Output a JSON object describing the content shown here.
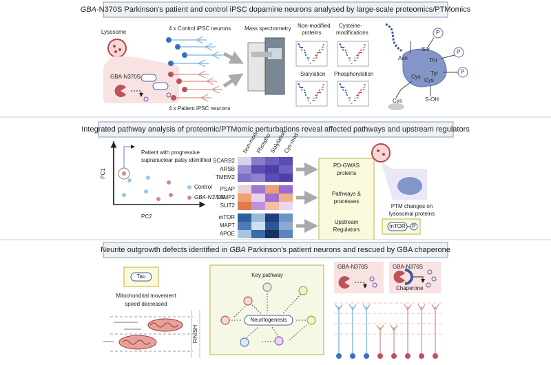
{
  "panel1": {
    "header": [
      "GBA",
      "-N370S Parkinson's patient and control iPSC dopamine neurons analysed by large-scale proteomics/PTMomics"
    ],
    "lysosome_label": "Lysosome",
    "mutant_label": "GBA-N370S",
    "control_label": "4 x Control iPSC neurons",
    "patient_label": "4 x Patient iPSC neurons",
    "instrument_label": "Mass spectrometry",
    "plots": [
      [
        "Non-modified",
        "proteins"
      ],
      [
        "Cysteine-",
        "modifications"
      ],
      [
        "Sialylation"
      ],
      [
        "Phosphorylation"
      ]
    ],
    "residues": [
      "Asn",
      "Ser",
      "Thr",
      "Tyr",
      "Cys",
      "Cys",
      "S-OH",
      "Cys"
    ],
    "phospho": [
      "P",
      "P",
      "P"
    ]
  },
  "panel2": {
    "header": "Integrated pathway analysis of proteomic/PTMomic perturbations reveal affected pathways and upstream regulators",
    "patient_note": [
      "Patient with progressive",
      "supranuclear palsy identified"
    ],
    "y_axis": "PC1",
    "x_axis": "PC2",
    "legend": [
      "Control",
      "GBA-N370S"
    ],
    "heatmap": {
      "columns": [
        "Non-mod.",
        "Phospho",
        "Sialylation",
        "Cys-mod."
      ],
      "groups": [
        {
          "rows": [
            "SCARB2",
            "ARSB",
            "TMEM2"
          ],
          "label": [
            "PD-GWAS",
            "proteins"
          ],
          "colors": [
            [
              "#d8d2ea",
              "#8a7cc8",
              "#6c5fbf",
              "#5a4db5"
            ],
            [
              "#9c90d0",
              "#5a4db5",
              "#4a3ea8",
              "#7060c0"
            ],
            [
              "#7c70c8",
              "#8e82cc",
              "#5a4db5",
              "#4d40ab"
            ]
          ]
        },
        {
          "rows": [
            "PSAP",
            "LAMP2",
            "SLIT2"
          ],
          "label": [
            "Pathways &",
            "processes"
          ],
          "colors": [
            [
              "#e8d2e0",
              "#a07ad0",
              "#e8a07a",
              "#9a6ad8"
            ],
            [
              "#f0a070",
              "#e7d0f0",
              "#a070d0",
              "#f2b08a"
            ],
            [
              "#e07b4c",
              "#c090e0",
              "#f5c0a0",
              "#e9d8f0"
            ]
          ]
        },
        {
          "rows": [
            "mTOR",
            "MAPT",
            "APOE"
          ],
          "label": [
            "Upstream",
            "Regulators"
          ],
          "colors": [
            [
              "#2f5fa0",
              "#9ab8d8",
              "#1f3f7a",
              "#6f95c5"
            ],
            [
              "#4f7ab5",
              "#cde0ef",
              "#2d5590",
              "#8aaad0"
            ],
            [
              "#a9c4e0",
              "#3c6aa8",
              "#16305f",
              "#5a85bd"
            ]
          ]
        }
      ]
    },
    "ptm_note": [
      "PTM changes on",
      "lysosomal proteins"
    ],
    "mtor": "mTOR",
    "phospho": "P"
  },
  "panel3": {
    "header": [
      "Neurite outgrowth defects identified in ",
      "GBA",
      " Parkinson's patient neurons and rescued by GBA chaperone"
    ],
    "tau": "Tau",
    "mito_note": [
      "Mitochondrial movement",
      "speed decreased"
    ],
    "finish": "FINISH",
    "pathway_title": "Key pathway",
    "pathway_node": "Neuritogenesis",
    "mutant_labels": [
      "GBA-N370S",
      "GBA-N370S"
    ],
    "chaperone": "Chaperone"
  }
}
